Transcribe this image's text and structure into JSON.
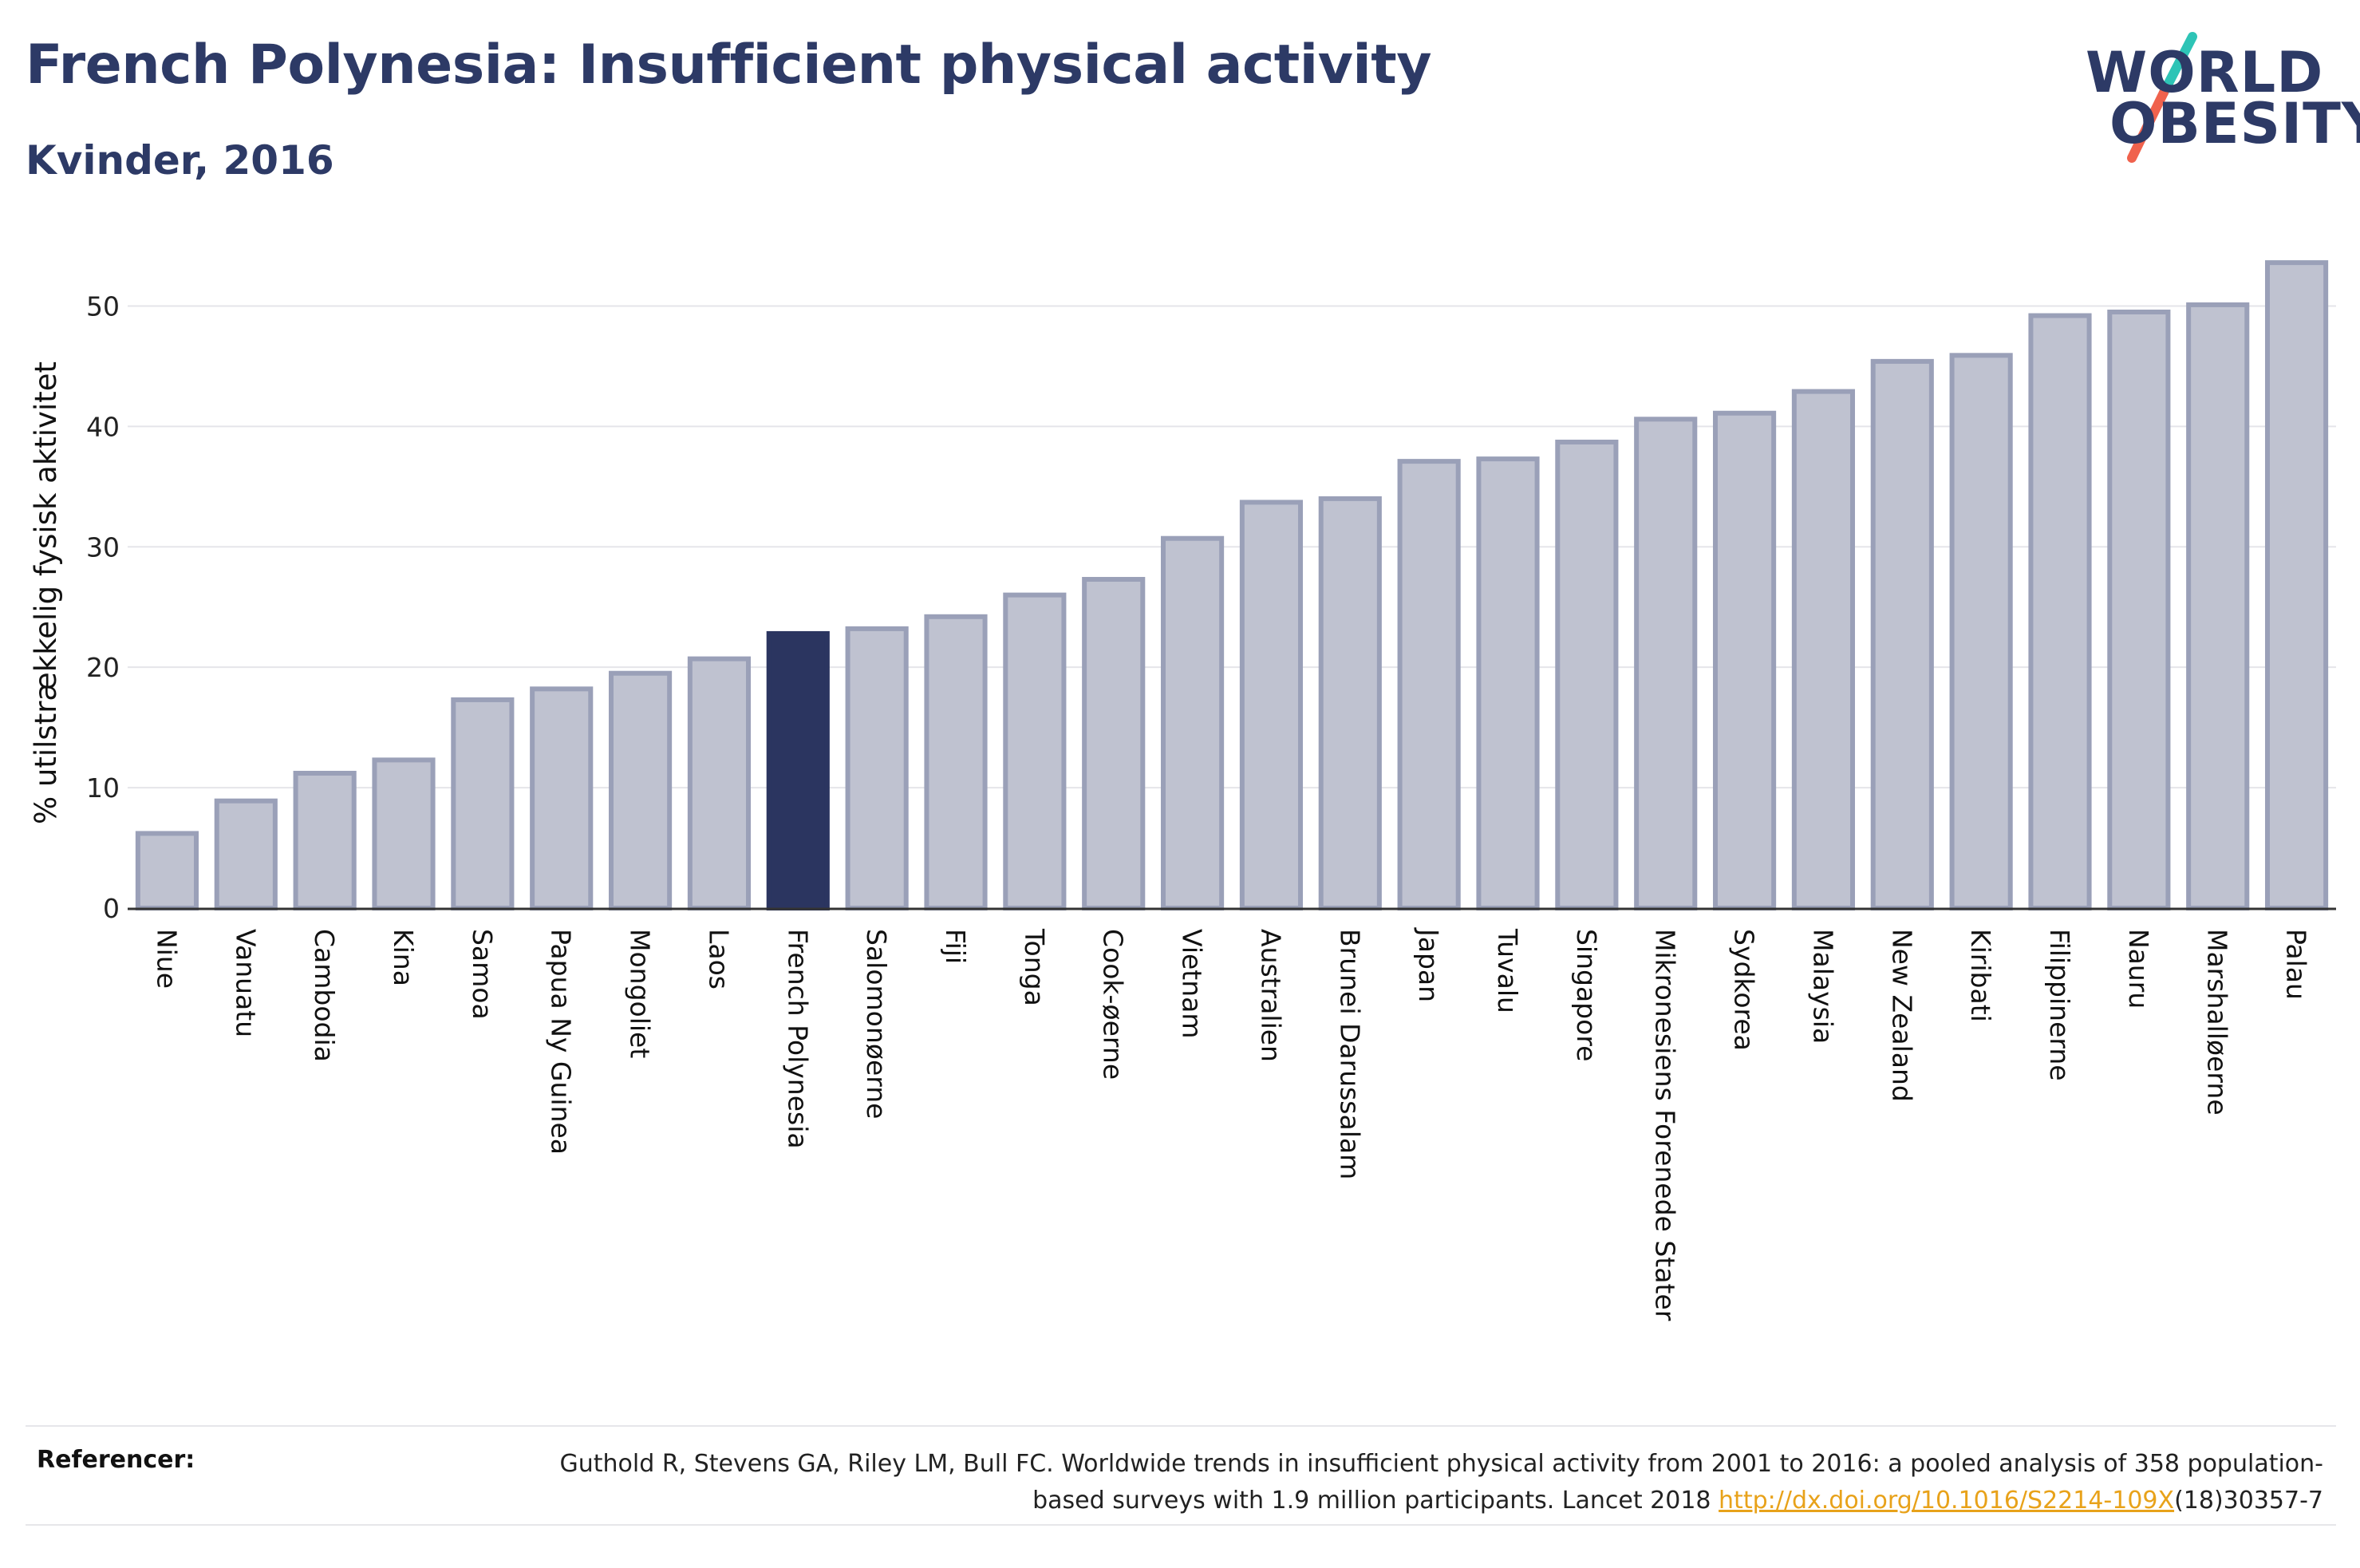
{
  "header": {
    "title": "French Polynesia: Insufficient physical activity",
    "subtitle": "Kvinder, 2016"
  },
  "logo": {
    "line1": "WORLD",
    "line2": "OBESITY",
    "colors": {
      "text": "#2d3a66",
      "slash_top": "#2ec4b6",
      "slash_bottom": "#f0624d"
    }
  },
  "chart_data": {
    "type": "bar",
    "ylabel": "% utilstrækkelig fysisk aktivitet",
    "xlabel": "",
    "ylim": [
      0,
      55
    ],
    "yticks": [
      0,
      10,
      20,
      30,
      40,
      50
    ],
    "grid": true,
    "highlight": "French Polynesia",
    "colors": {
      "bar": "#bfc2d0",
      "bar_edge": "#9aa0b8",
      "highlight": "#2b3560",
      "grid": "#e5e5ea",
      "axis": "#333333"
    },
    "categories": [
      "Niue",
      "Vanuatu",
      "Cambodia",
      "Kina",
      "Samoa",
      "Papua Ny Guinea",
      "Mongoliet",
      "Laos",
      "French Polynesia",
      "Salomonøerne",
      "Fiji",
      "Tonga",
      "Cook-øerne",
      "Vietnam",
      "Australien",
      "Brunei Darussalam",
      "Japan",
      "Tuvalu",
      "Singapore",
      "Mikronesiens Forenede Stater",
      "Sydkorea",
      "Malaysia",
      "New Zealand",
      "Kiribati",
      "Filippinerne",
      "Nauru",
      "Marshalløerne",
      "Palau"
    ],
    "values": [
      6.2,
      8.9,
      11.2,
      12.3,
      17.3,
      18.2,
      19.5,
      20.7,
      22.8,
      23.2,
      24.2,
      26.0,
      27.3,
      30.7,
      33.7,
      34.0,
      37.1,
      37.3,
      38.7,
      40.6,
      41.1,
      42.9,
      45.4,
      45.9,
      49.2,
      49.5,
      50.1,
      53.6
    ]
  },
  "references": {
    "label": "Referencer:",
    "text_before": "Guthold R, Stevens GA, Riley LM, Bull FC. Worldwide trends in insufficient physical activity from 2001 to 2016: a pooled analysis of 358 population-based surveys with 1.9 million participants. Lancet 2018 ",
    "link": "http://dx.doi.org/10.1016/S2214-109X",
    "text_after": "(18)30357-7"
  }
}
